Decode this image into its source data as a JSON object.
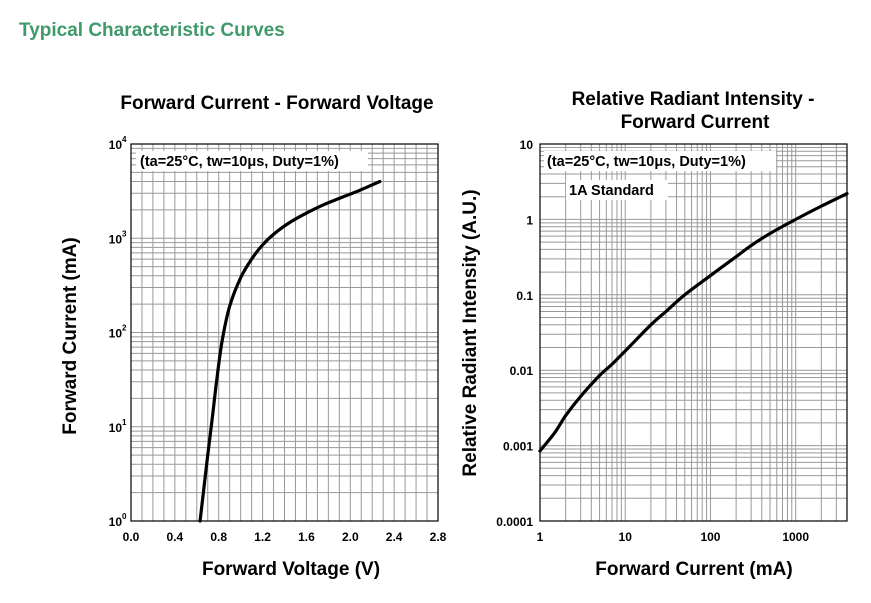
{
  "section_title": "Typical Characteristic Curves",
  "colors": {
    "section_title": "#3f9a6a",
    "grid": "#999999",
    "frame": "#000000",
    "curve": "#000000"
  },
  "chart_data": [
    {
      "type": "line",
      "title": "Forward Current - Forward Voltage",
      "title_lines": [
        "Forward Current - Forward Voltage"
      ],
      "xlabel": "Forward Voltage (V)",
      "ylabel": "Forward Current (mA)",
      "xlim": [
        0,
        2.8
      ],
      "ylim": [
        1,
        10000
      ],
      "yscale": "log",
      "xticks": [
        0.0,
        0.4,
        0.8,
        1.2,
        1.6,
        2.0,
        2.4,
        2.8
      ],
      "xtick_labels": [
        "0.0",
        "0.4",
        "0.8",
        "1.2",
        "1.6",
        "2.0",
        "2.4",
        "2.8"
      ],
      "yticks": [
        1,
        10,
        100,
        1000,
        10000
      ],
      "ytick_bases": [
        "10",
        "10",
        "10",
        "10",
        "10"
      ],
      "ytick_exps": [
        "0",
        "1",
        "2",
        "3",
        "4"
      ],
      "grid": true,
      "annotations": [
        "(ta=25°C, tw=10μs, Duty=1%)"
      ],
      "series": [
        {
          "x": [
            0.63,
            0.66,
            0.7,
            0.74,
            0.78,
            0.83,
            0.9,
            1.0,
            1.1,
            1.2,
            1.32,
            1.46,
            1.6,
            1.75,
            1.9,
            2.05,
            2.18,
            2.27
          ],
          "y": [
            1,
            2,
            5,
            12,
            30,
            80,
            190,
            380,
            600,
            850,
            1150,
            1500,
            1850,
            2250,
            2650,
            3100,
            3600,
            4000
          ]
        }
      ]
    },
    {
      "type": "line",
      "title": "Relative Radiant Intensity - Forward Current",
      "title_lines": [
        "Relative Radiant Intensity -",
        "Forward Current"
      ],
      "xlabel": "Forward Current (mA)",
      "ylabel": "Relative Radiant Intensity (A.U.)",
      "xlim": [
        1,
        4000
      ],
      "ylim": [
        0.0001,
        10
      ],
      "xscale": "log",
      "yscale": "log",
      "xticks": [
        1,
        10,
        100,
        1000
      ],
      "xtick_labels": [
        "1",
        "10",
        "100",
        "1000"
      ],
      "yticks": [
        0.0001,
        0.001,
        0.01,
        0.1,
        1,
        10
      ],
      "ytick_labels": [
        "0.0001",
        "0.001",
        "0.01",
        "0.1",
        "1",
        "10"
      ],
      "grid": true,
      "annotations": [
        "(ta=25°C, tw=10μs, Duty=1%)",
        "1A Standard"
      ],
      "series": [
        {
          "x": [
            1,
            1.5,
            2,
            3,
            5,
            7,
            10,
            20,
            30,
            50,
            100,
            200,
            300,
            500,
            1000,
            2000,
            4000
          ],
          "y": [
            0.00085,
            0.0015,
            0.0025,
            0.0045,
            0.0085,
            0.012,
            0.018,
            0.04,
            0.06,
            0.1,
            0.18,
            0.32,
            0.45,
            0.65,
            1.0,
            1.5,
            2.2
          ]
        }
      ]
    }
  ]
}
